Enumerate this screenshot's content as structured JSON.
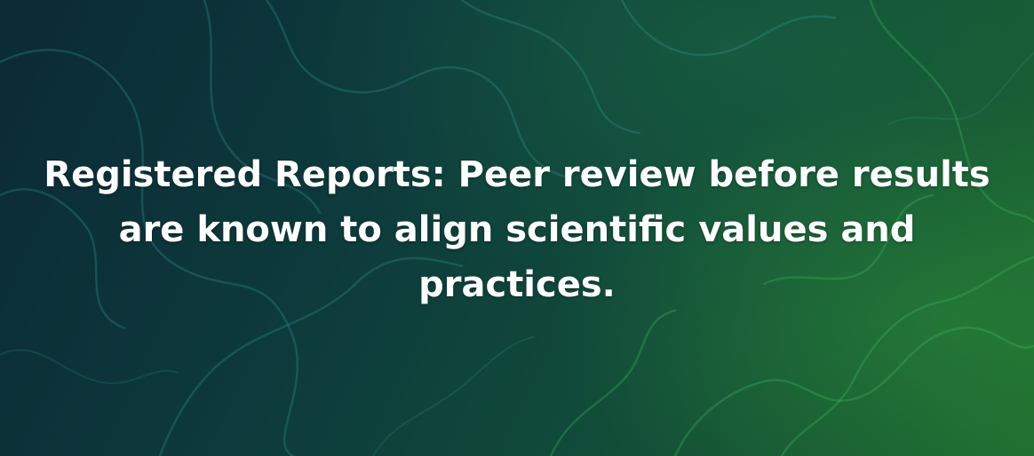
{
  "hero": {
    "headline": "Registered Reports: Peer review before results are known to align scientific values and practices."
  },
  "colors": {
    "text": "#ffffff",
    "background_dark": "#0b2a35",
    "background_green": "#1d6a2e",
    "strand_teal": "#2fa59a",
    "strand_green": "#3fbf5a"
  }
}
